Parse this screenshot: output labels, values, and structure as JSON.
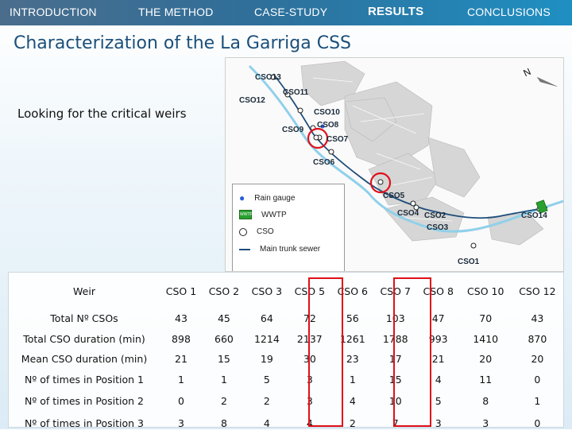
{
  "nav": {
    "items": [
      {
        "label": "INTRODUCTION",
        "active": false
      },
      {
        "label": "THE METHOD",
        "active": false
      },
      {
        "label": "CASE-STUDY",
        "active": false
      },
      {
        "label": "RESULTS",
        "active": true
      },
      {
        "label": "CONCLUSIONS",
        "active": false
      }
    ]
  },
  "title": "Characterization of the La Garriga CSS",
  "subtitle": "Looking for the critical weirs",
  "map": {
    "labels": [
      "CSO13",
      "CSO11",
      "CSO12",
      "CSO10",
      "CSO8",
      "CSO9",
      "CSO7",
      "CSO6",
      "CSO5",
      "CSO4",
      "CSO2",
      "CSO3",
      "CSO14",
      "CSO1",
      "N"
    ],
    "legend": [
      "Rain gauge",
      "WWTP",
      "CSO",
      "Main trunk sewer"
    ],
    "legend_badge": "WWTP",
    "highlight_color": "#e0101a"
  },
  "table": {
    "header_label": "Weir",
    "columns": [
      "CSO 1",
      "CSO 2",
      "CSO 3",
      "CSO 5",
      "CSO 6",
      "CSO 7",
      "CSO 8",
      "CSO 10",
      "CSO 12"
    ],
    "rows": [
      {
        "label": "Total Nº CSOs",
        "values": [
          "43",
          "45",
          "64",
          "72",
          "56",
          "103",
          "47",
          "70",
          "43"
        ]
      },
      {
        "label": "Total CSO duration (min)",
        "values": [
          "898",
          "660",
          "1214",
          "2137",
          "1261",
          "1788",
          "993",
          "1410",
          "870"
        ]
      },
      {
        "label": "Mean CSO duration (min)",
        "values": [
          "21",
          "15",
          "19",
          "30",
          "23",
          "17",
          "21",
          "20",
          "20"
        ]
      },
      {
        "label": "Nº of times in Position 1",
        "values": [
          "1",
          "1",
          "5",
          "3",
          "1",
          "15",
          "4",
          "11",
          "0"
        ]
      },
      {
        "label": "Nº of times in Position 2",
        "values": [
          "0",
          "2",
          "2",
          "3",
          "4",
          "10",
          "5",
          "8",
          "1"
        ]
      },
      {
        "label": "Nº of times in Position 3",
        "values": [
          "3",
          "8",
          "4",
          "4",
          "2",
          "7",
          "3",
          "3",
          "0"
        ]
      }
    ],
    "highlighted_columns": [
      "CSO 5",
      "CSO 7"
    ]
  }
}
